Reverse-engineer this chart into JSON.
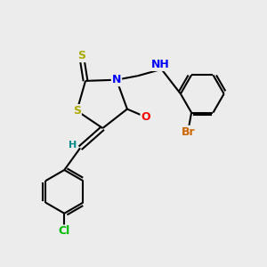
{
  "bg_color": "#ececec",
  "bond_color": "#000000",
  "atom_colors": {
    "S": "#aaaa00",
    "N": "#0000ff",
    "O": "#ff0000",
    "Cl": "#00bb00",
    "Br": "#cc6600",
    "H": "#008888",
    "C": "#000000"
  },
  "font_size": 9,
  "figsize": [
    3.0,
    3.0
  ],
  "dpi": 100
}
